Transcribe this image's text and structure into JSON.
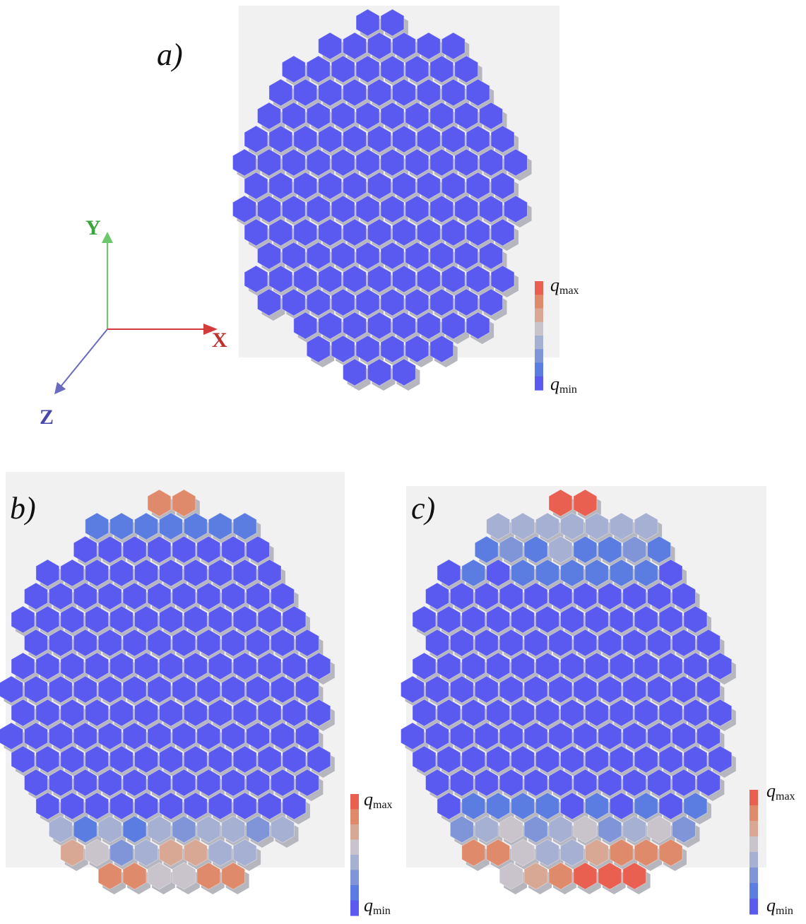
{
  "panels": [
    {
      "id": "a",
      "label": "a)"
    },
    {
      "id": "b",
      "label": "b)"
    },
    {
      "id": "c",
      "label": "c)"
    }
  ],
  "axes": {
    "x": "X",
    "y": "Y",
    "z": "Z"
  },
  "colorbar": {
    "max_symbol": "q",
    "max_sub": "max",
    "min_symbol": "q",
    "min_sub": "min"
  },
  "colors": {
    "qmin": "#5a5af0",
    "scale": [
      "#5a5af0",
      "#5b7ce0",
      "#7f95d8",
      "#a6b0d2",
      "#c9c3cc",
      "#d9a894",
      "#e08a6c",
      "#ea6050"
    ],
    "shadow": "#b6b6be",
    "backdrop": "#efefef"
  }
}
